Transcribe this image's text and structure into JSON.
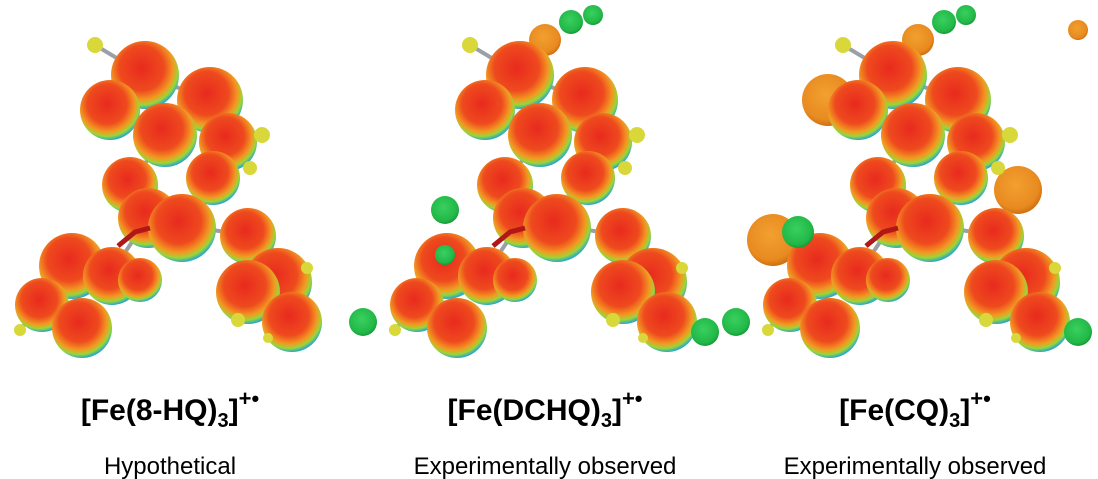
{
  "panels": [
    {
      "formula": {
        "prefix": "[Fe(8-HQ)",
        "subscript": "3",
        "suffix": "]",
        "superscript": "+•"
      },
      "caption": "Hypothetical"
    },
    {
      "formula": {
        "prefix": "[Fe(DCHQ)",
        "subscript": "3",
        "suffix": "]",
        "superscript": "+•"
      },
      "caption": "Experimentally observed"
    },
    {
      "formula": {
        "prefix": "[Fe(CQ)",
        "subscript": "3",
        "suffix": "]",
        "superscript": "+•"
      },
      "caption": "Experimentally observed"
    }
  ]
}
